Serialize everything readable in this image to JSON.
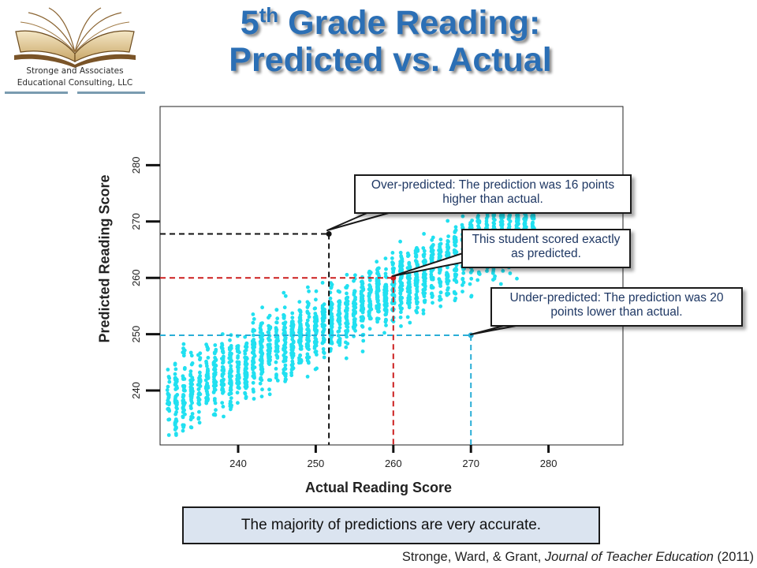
{
  "logo": {
    "line1": "Stronge and Associates",
    "line2": "Educational Consulting, LLC"
  },
  "title": {
    "line1_num": "5",
    "line1_sup": "th",
    "line1_rest": " Grade Reading:",
    "line2": "Predicted vs. Actual"
  },
  "callouts": {
    "over": "Over-predicted: The prediction was 16 points higher than actual.",
    "exact": "This student scored exactly as predicted.",
    "under": "Under-predicted: The prediction was 20 points lower than actual."
  },
  "summary": "The majority of predictions are very accurate.",
  "citation": {
    "authors": "Stronge, Ward, & Grant, ",
    "journal": "Journal of Teacher Education",
    "year": " (2011)"
  },
  "colors": {
    "title": "#2b6fb5",
    "points": "#21e0f0",
    "over": "#111111",
    "exact": "#cc1f1f",
    "under": "#2aaed6"
  },
  "chart_data": {
    "type": "scatter",
    "xlabel": "Actual Reading Score",
    "ylabel": "Predicted Reading Score",
    "xlim": [
      230,
      290
    ],
    "ylim": [
      230,
      290
    ],
    "xticks": [
      240,
      250,
      260,
      270,
      280
    ],
    "yticks": [
      240,
      250,
      260,
      270,
      280
    ],
    "grid": false,
    "trend_note": "dense cloud of points following a positive linear trend, approx. predicted = 251 + 0.7*(actual - 250)",
    "highlighted": [
      {
        "name": "over",
        "x": 251.7,
        "y": 267.8
      },
      {
        "name": "exact",
        "x": 260.0,
        "y": 260.0
      },
      {
        "name": "under",
        "x": 270.0,
        "y": 249.8
      }
    ]
  }
}
